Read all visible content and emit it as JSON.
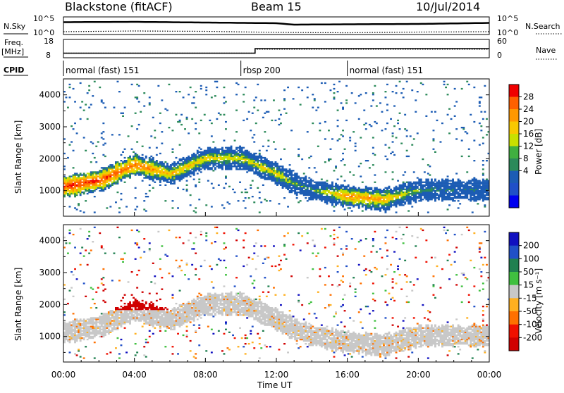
{
  "header": {
    "title": "Blackstone (fitACF)",
    "beam": "Beam 15",
    "date": "10/Jul/2014"
  },
  "labels": {
    "nsky": "N.Sky",
    "nsearch": "N.Search",
    "freq_top": "Freq.",
    "freq_unit": "[MHz]",
    "nave": "Nave",
    "cpid": "CPID",
    "ylabel": "Slant Range [km]",
    "xlabel": "Time UT",
    "power_label": "Power [dB]",
    "velocity_label": "Velocity [m s⁻¹]"
  },
  "noise_panel": {
    "left_ticks": [
      "10^5",
      "10^0"
    ],
    "right_ticks": [
      "10^5",
      "10^0"
    ]
  },
  "freq_panel": {
    "left_ticks": [
      "18",
      "8"
    ],
    "right_ticks": [
      "60",
      "0"
    ]
  },
  "cpid_segments": [
    {
      "label": "normal (fast) 151",
      "start_h": 0
    },
    {
      "label": "rbsp 200",
      "start_h": 10
    },
    {
      "label": "normal (fast) 151",
      "start_h": 16
    }
  ],
  "power_colorbar": {
    "ticks": [
      "28",
      "24",
      "20",
      "16",
      "12",
      "8",
      "4"
    ],
    "colors": [
      "#f00000",
      "#ff6000",
      "#ff9800",
      "#f8c800",
      "#c8e000",
      "#40b040",
      "#2c8a5a",
      "#1c5cb4",
      "#2050c8",
      "#0000f0"
    ]
  },
  "velocity_colorbar": {
    "ticks": [
      "200",
      "100",
      "50",
      "15",
      "-15",
      "-50",
      "-100",
      "-200"
    ],
    "colors": [
      "#1010c0",
      "#2050c8",
      "#208050",
      "#40c040",
      "#c8c8c8",
      "#ffb020",
      "#ff7000",
      "#f01000",
      "#d00000"
    ]
  },
  "chart_data": [
    {
      "type": "heatmap",
      "title": "Power",
      "xlabel": "Time UT",
      "ylabel": "Slant Range [km]",
      "x_ticks": [
        "00:00",
        "04:00",
        "08:00",
        "12:00",
        "16:00",
        "20:00",
        "00:00"
      ],
      "xlim": [
        0,
        24
      ],
      "y_ticks": [
        1000,
        2000,
        3000,
        4000
      ],
      "ylim": [
        200,
        4500
      ],
      "colorbar_label": "Power [dB]",
      "colorbar_ticks": [
        28,
        24,
        20,
        16,
        12,
        8,
        4
      ],
      "dominant_band": {
        "time_h": [
          0,
          2,
          4,
          6,
          8,
          10,
          12,
          13,
          14,
          16,
          18,
          20,
          22,
          24
        ],
        "range_km": [
          1100,
          1300,
          1800,
          1500,
          2000,
          2000,
          1500,
          1200,
          1000,
          800,
          700,
          1000,
          1000,
          1000
        ],
        "peak_power_db": [
          30,
          28,
          26,
          20,
          18,
          16,
          18,
          12,
          10,
          24,
          22,
          12,
          8,
          8
        ]
      }
    },
    {
      "type": "heatmap",
      "title": "Velocity",
      "xlabel": "Time UT",
      "ylabel": "Slant Range [km]",
      "x_ticks": [
        "00:00",
        "04:00",
        "08:00",
        "12:00",
        "16:00",
        "20:00",
        "00:00"
      ],
      "xlim": [
        0,
        24
      ],
      "y_ticks": [
        1000,
        2000,
        3000,
        4000
      ],
      "ylim": [
        200,
        4500
      ],
      "colorbar_label": "Velocity [m s⁻¹]",
      "colorbar_ticks": [
        200,
        100,
        50,
        15,
        -15,
        -50,
        -100,
        -200
      ],
      "notable_feature": {
        "time_h": [
          2,
          6
        ],
        "range_km": [
          1800,
          2600
        ],
        "velocity_ms": -200
      }
    },
    {
      "type": "line",
      "title": "Noise",
      "series": [
        {
          "name": "N.Sky",
          "style": "solid",
          "time_h": [
            0,
            4,
            8,
            12,
            13,
            16,
            20,
            24
          ],
          "log10_value": [
            3.5,
            3.6,
            3.4,
            3.2,
            2.8,
            2.9,
            3.0,
            3.3
          ]
        },
        {
          "name": "N.Search",
          "style": "dotted",
          "time_h": [
            0,
            4,
            8,
            12,
            16,
            20,
            24
          ],
          "log10_value": [
            0.8,
            1.0,
            0.9,
            0.6,
            0.5,
            0.7,
            0.8
          ]
        }
      ]
    },
    {
      "type": "line",
      "title": "Frequency / Nave",
      "series": [
        {
          "name": "Freq.",
          "style": "solid",
          "time_h": [
            0,
            10.8,
            10.8,
            24
          ],
          "value_mhz": [
            10.5,
            10.5,
            13.0,
            13.0
          ]
        },
        {
          "name": "Nave",
          "style": "dotted",
          "time_h": [
            0,
            10.8,
            10.8,
            24
          ],
          "value": [
            15,
            15,
            28,
            28
          ]
        }
      ]
    }
  ]
}
